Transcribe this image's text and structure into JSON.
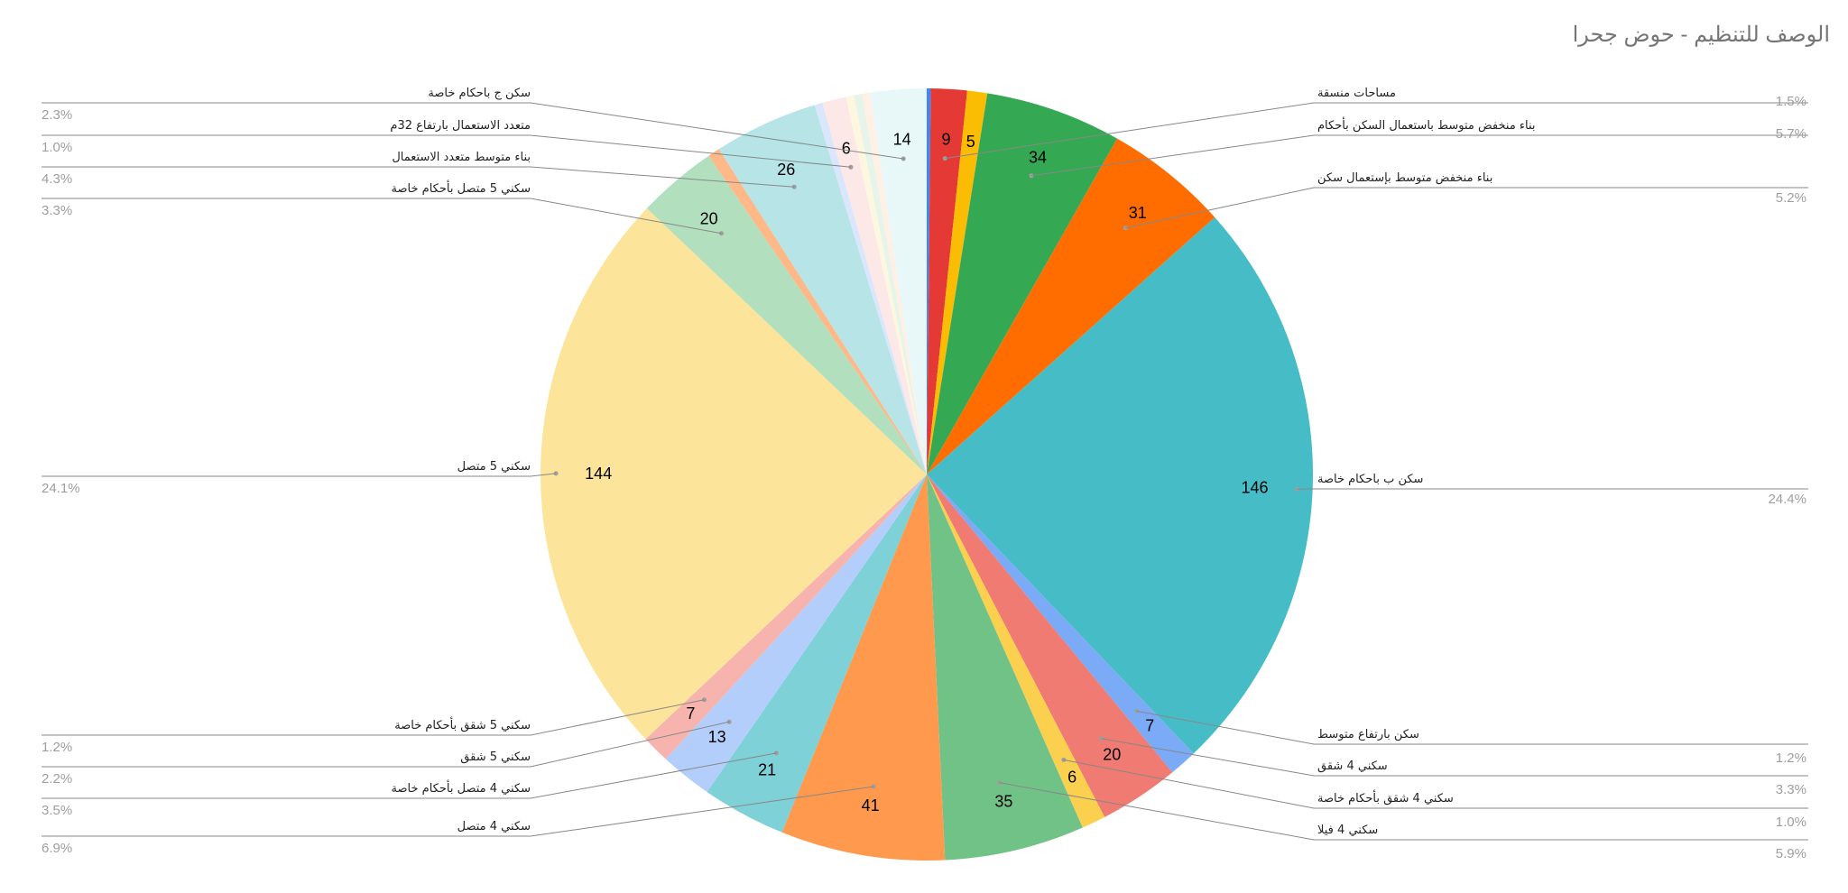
{
  "chart_data": {
    "type": "pie",
    "title": "الوصف للتنظيم - حوض جحرا",
    "slices": [
      {
        "name": "",
        "value": 1,
        "percent": "",
        "color": "#4285f4"
      },
      {
        "name": "مساحات منسقة",
        "value": 9,
        "percent": "1.5%",
        "color": "#e53935"
      },
      {
        "name": "",
        "value": 5,
        "percent": "",
        "color": "#fbbc04"
      },
      {
        "name": "بناء منخفض متوسط باستعمال السكن بأحكام",
        "value": 34,
        "percent": "5.7%",
        "color": "#34a853"
      },
      {
        "name": "بناء منخفض متوسط بإستعمال سكن",
        "value": 31,
        "percent": "5.2%",
        "color": "#ff6d01"
      },
      {
        "name": "سكن ب باحكام خاصة",
        "value": 146,
        "percent": "24.4%",
        "color": "#46bdc6"
      },
      {
        "name": "سكن بارتفاع متوسط",
        "value": 7,
        "percent": "1.2%",
        "color": "#7baaf7"
      },
      {
        "name": "سكني 4 شقق",
        "value": 20,
        "percent": "3.3%",
        "color": "#f07b72"
      },
      {
        "name": "سكني 4 شقق بأحكام خاصة",
        "value": 6,
        "percent": "1.0%",
        "color": "#fcd04f"
      },
      {
        "name": "سكني 4 فيلا",
        "value": 35,
        "percent": "5.9%",
        "color": "#71c287"
      },
      {
        "name": "سكني 4 متصل",
        "value": 41,
        "percent": "6.9%",
        "color": "#ff994d"
      },
      {
        "name": "سكني 4 متصل بأحكام خاصة",
        "value": 21,
        "percent": "3.5%",
        "color": "#7ed1d7"
      },
      {
        "name": "سكني 5 شقق",
        "value": 13,
        "percent": "2.2%",
        "color": "#b3cefb"
      },
      {
        "name": "سكني 5 شقق بأحكام خاصة",
        "value": 7,
        "percent": "1.2%",
        "color": "#f7b4ae"
      },
      {
        "name": "سكني 5 متصل",
        "value": 144,
        "percent": "24.1%",
        "color": "#fde49b"
      },
      {
        "name": "سكني 5 متصل بأحكام خاصة",
        "value": 20,
        "percent": "3.3%",
        "color": "#b2dfbd"
      },
      {
        "name": "",
        "value": 3,
        "percent": "",
        "color": "#ffb887"
      },
      {
        "name": "بناء متوسط متعدد الاستعمال",
        "value": 26,
        "percent": "4.3%",
        "color": "#b6e4e7"
      },
      {
        "name": "",
        "value": 2,
        "percent": "",
        "color": "#d9e6fc"
      },
      {
        "name": "متعدد الاستعمال بارتفاع 32م",
        "value": 6,
        "percent": "1.0%",
        "color": "#fce8e6"
      },
      {
        "name": "",
        "value": 2,
        "percent": "",
        "color": "#fef7e0"
      },
      {
        "name": "",
        "value": 2,
        "percent": "",
        "color": "#e6f4ea"
      },
      {
        "name": "",
        "value": 2,
        "percent": "",
        "color": "#fff0e6"
      },
      {
        "name": "سكن ج باحكام خاصة",
        "value": 14,
        "percent": "2.3%",
        "color": "#e8f7f8"
      }
    ],
    "legend": "callouts-sides",
    "data_labels": "values"
  }
}
